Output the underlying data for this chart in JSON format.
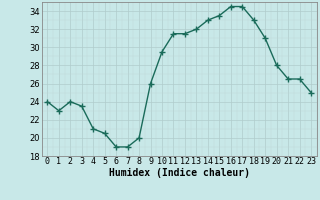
{
  "x": [
    0,
    1,
    2,
    3,
    4,
    5,
    6,
    7,
    8,
    9,
    10,
    11,
    12,
    13,
    14,
    15,
    16,
    17,
    18,
    19,
    20,
    21,
    22,
    23
  ],
  "y": [
    24,
    23,
    24,
    23.5,
    21,
    20.5,
    19,
    19,
    20,
    26,
    29.5,
    31.5,
    31.5,
    32,
    33,
    33.5,
    34.5,
    34.5,
    33,
    31,
    28,
    26.5,
    26.5,
    25
  ],
  "line_color": "#1a6b5a",
  "marker_color": "#1a6b5a",
  "bg_color": "#c8e8e8",
  "xlabel": "Humidex (Indice chaleur)",
  "ylim": [
    18,
    35
  ],
  "xlim": [
    -0.5,
    23.5
  ],
  "yticks": [
    18,
    20,
    22,
    24,
    26,
    28,
    30,
    32,
    34
  ],
  "xtick_labels": [
    "0",
    "1",
    "2",
    "3",
    "4",
    "5",
    "6",
    "7",
    "8",
    "9",
    "10",
    "11",
    "12",
    "13",
    "14",
    "15",
    "16",
    "17",
    "18",
    "19",
    "20",
    "21",
    "22",
    "23"
  ],
  "marker_size": 2.5,
  "line_width": 1.0,
  "xlabel_fontsize": 7,
  "tick_fontsize": 6
}
